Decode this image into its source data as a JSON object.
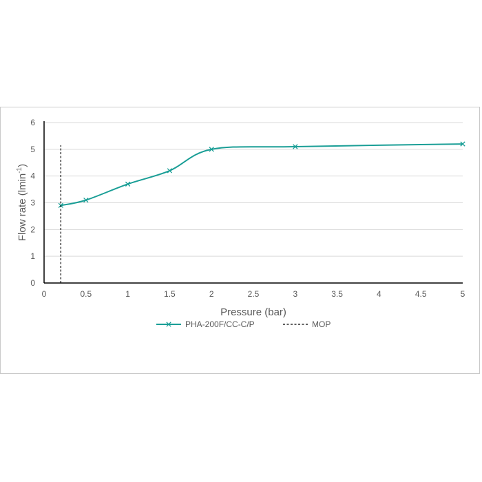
{
  "chart_data": {
    "type": "line",
    "xlabel": "Pressure (bar)",
    "ylabel": {
      "prefix": "Flow rate (lmin",
      "superscript": "-1",
      "suffix": ")"
    },
    "xlim": [
      0,
      5
    ],
    "ylim": [
      0,
      6
    ],
    "x_ticks": [
      "0",
      "0.5",
      "1",
      "1.5",
      "2",
      "2.5",
      "3",
      "3.5",
      "4",
      "4.5",
      "5"
    ],
    "y_ticks": [
      "0",
      "1",
      "2",
      "3",
      "4",
      "5",
      "6"
    ],
    "grid": "horizontal",
    "legend_position": "bottom",
    "series": [
      {
        "name": "PHA-200F/CC-C/P",
        "color": "#1a9e96",
        "marker": "x",
        "smooth": true,
        "x": [
          0.2,
          0.5,
          1,
          1.5,
          2,
          3,
          5
        ],
        "y": [
          2.9,
          3.1,
          3.7,
          4.2,
          5.0,
          5.1,
          5.2
        ]
      },
      {
        "name": "MOP",
        "color": "#000000",
        "style": "dashed",
        "x": [
          0.2,
          0.2
        ],
        "y": [
          0,
          5.15
        ]
      }
    ]
  }
}
